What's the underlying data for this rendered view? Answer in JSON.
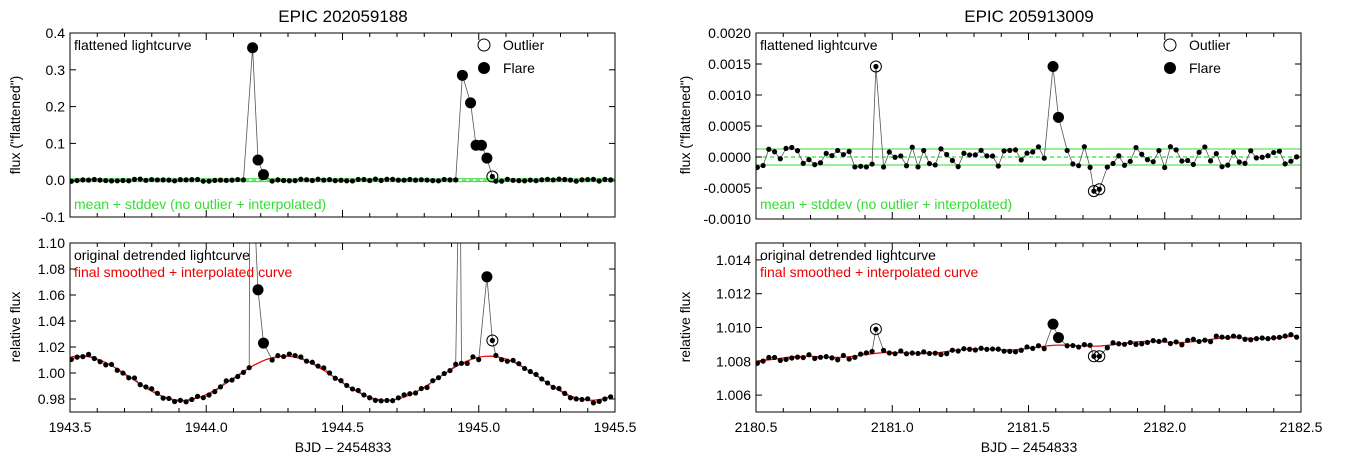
{
  "figure": {
    "background": "#ffffff"
  },
  "colors": {
    "axis": "#000000",
    "data": "#000000",
    "band": "#33dd33",
    "smooth": "#ee0000"
  },
  "xlabel": "BJD – 2454833",
  "chart_data": [
    {
      "type": "scatter",
      "title": "EPIC 202059188",
      "label_top": "flattened lightcurve",
      "label_bottom": "mean + stddev (no outlier + interpolated)",
      "ylabel": "flux (\"flattened\")",
      "xlim": [
        1943.5,
        1945.5
      ],
      "ylim": [
        -0.1,
        0.4
      ],
      "yticks": [
        -0.1,
        0.0,
        0.1,
        0.2,
        0.3,
        0.4
      ],
      "ytick_labels": [
        "-0.1",
        "0.0",
        "0.1",
        "0.2",
        "0.3",
        "0.4"
      ],
      "grid": false,
      "legend": {
        "position": "top-right",
        "entries": [
          "Outlier",
          "Flare"
        ]
      },
      "band": {
        "mean": 0.0,
        "std": 0.004
      },
      "series": [
        {
          "name": "Flare",
          "x": [
            1944.17,
            1944.19,
            1944.21,
            1944.94,
            1944.97,
            1944.99,
            1945.01,
            1945.03
          ],
          "y": [
            0.36,
            0.055,
            0.015,
            0.285,
            0.21,
            0.095,
            0.095,
            0.06
          ]
        },
        {
          "name": "Outlier",
          "x": [
            1945.05
          ],
          "y": [
            0.01
          ]
        }
      ]
    },
    {
      "type": "line",
      "label_top": "original detrended lightcurve",
      "label_bottom": "final smoothed + interpolated curve",
      "ylabel": "relative flux",
      "xlabel": "BJD – 2454833",
      "xlim": [
        1943.5,
        1945.5
      ],
      "ylim": [
        0.97,
        1.1
      ],
      "xticks": [
        1943.5,
        1944.0,
        1944.5,
        1945.0,
        1945.5
      ],
      "xtick_labels": [
        "1943.5",
        "1944.0",
        "1944.5",
        "1945.0",
        "1945.5"
      ],
      "yticks": [
        0.98,
        1.0,
        1.02,
        1.04,
        1.06,
        1.08,
        1.1
      ],
      "ytick_labels": [
        "0.98",
        "1.00",
        "1.02",
        "1.04",
        "1.06",
        "1.08",
        "1.10"
      ],
      "grid": false,
      "series": [
        {
          "name": "Flare",
          "x": [
            1944.19,
            1944.21,
            1945.03
          ],
          "y": [
            1.064,
            1.023,
            1.074
          ]
        },
        {
          "name": "Outlier",
          "x": [
            1945.05
          ],
          "y": [
            1.025
          ]
        }
      ]
    },
    {
      "type": "scatter",
      "title": "EPIC 205913009",
      "label_top": "flattened lightcurve",
      "label_bottom": "mean + stddev (no outlier + interpolated)",
      "ylabel": "flux (\"flattened\")",
      "xlim": [
        2180.5,
        2182.5
      ],
      "ylim": [
        -0.001,
        0.002
      ],
      "yticks": [
        -0.001,
        -0.0005,
        0.0,
        0.0005,
        0.001,
        0.0015,
        0.002
      ],
      "ytick_labels": [
        "-0.0010",
        "-0.0005",
        "0.0000",
        "0.0005",
        "0.0010",
        "0.0015",
        "0.0020"
      ],
      "grid": false,
      "legend": {
        "position": "top-right",
        "entries": [
          "Outlier",
          "Flare"
        ]
      },
      "band": {
        "mean": 0.0,
        "std": 0.00013
      },
      "series": [
        {
          "name": "Flare",
          "x": [
            2181.59,
            2181.61
          ],
          "y": [
            0.00146,
            0.00064
          ]
        },
        {
          "name": "Outlier",
          "x": [
            2180.94,
            2181.74,
            2181.76
          ],
          "y": [
            0.00146,
            -0.00055,
            -0.00052
          ]
        }
      ]
    },
    {
      "type": "line",
      "label_top": "original detrended lightcurve",
      "label_bottom": "final smoothed + interpolated curve",
      "ylabel": "relative flux",
      "xlabel": "BJD – 2454833",
      "xlim": [
        2180.5,
        2182.5
      ],
      "ylim": [
        1.005,
        1.015
      ],
      "xticks": [
        2180.5,
        2181.0,
        2181.5,
        2182.0,
        2182.5
      ],
      "xtick_labels": [
        "2180.5",
        "2181.0",
        "2181.5",
        "2182.0",
        "2182.5"
      ],
      "yticks": [
        1.006,
        1.008,
        1.01,
        1.012,
        1.014
      ],
      "ytick_labels": [
        "1.006",
        "1.008",
        "1.010",
        "1.012",
        "1.014"
      ],
      "grid": false,
      "series": [
        {
          "name": "Flare",
          "x": [
            2181.59,
            2181.61
          ],
          "y": [
            1.0102,
            1.0094
          ]
        },
        {
          "name": "Outlier",
          "x": [
            2180.94,
            2181.74,
            2181.76
          ],
          "y": [
            1.0099,
            1.0083,
            1.0083
          ]
        }
      ]
    }
  ]
}
